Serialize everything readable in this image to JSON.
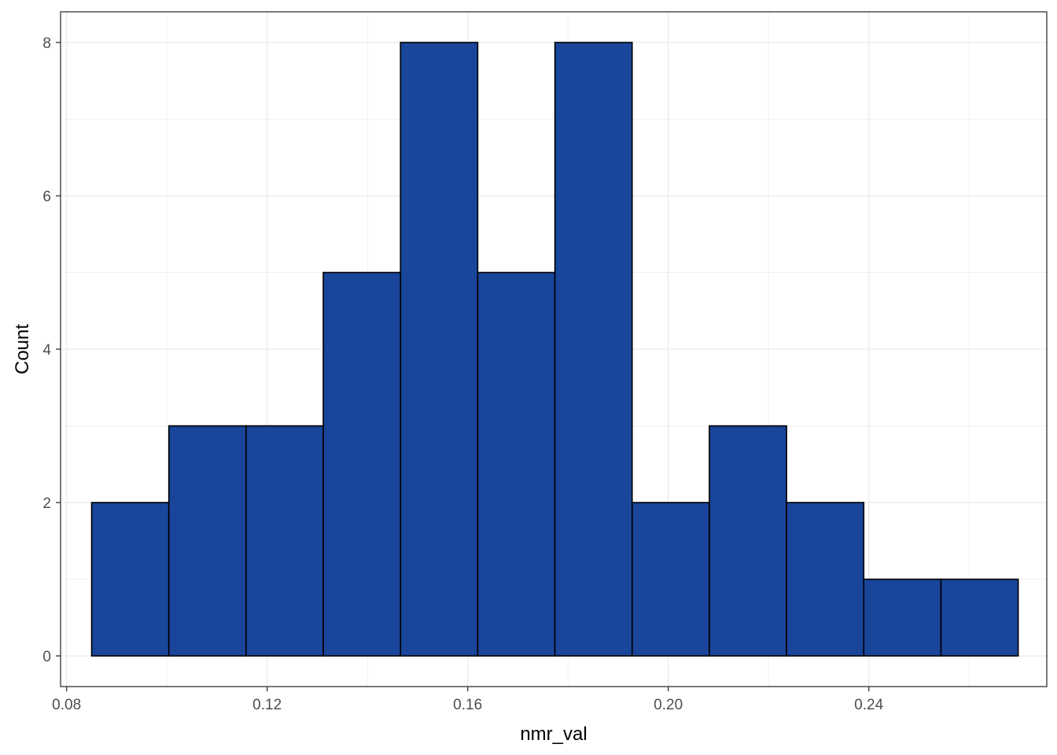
{
  "chart_data": {
    "type": "bar",
    "subtype": "histogram",
    "xlabel": "nmr_val",
    "ylabel": "Count",
    "xlim": [
      0.0788,
      0.2755
    ],
    "ylim": [
      -0.4,
      8.4
    ],
    "x_ticks": [
      0.08,
      0.12,
      0.16,
      0.2,
      0.24
    ],
    "x_tick_labels": [
      "0.08",
      "0.12",
      "0.16",
      "0.20",
      "0.24"
    ],
    "y_ticks": [
      0,
      2,
      4,
      6,
      8
    ],
    "y_tick_labels": [
      "0",
      "2",
      "4",
      "6",
      "8"
    ],
    "bins": [
      {
        "x_start": 0.085,
        "x_end": 0.1004,
        "count": 2
      },
      {
        "x_start": 0.1004,
        "x_end": 0.1158,
        "count": 3
      },
      {
        "x_start": 0.1158,
        "x_end": 0.1312,
        "count": 3
      },
      {
        "x_start": 0.1312,
        "x_end": 0.1466,
        "count": 5
      },
      {
        "x_start": 0.1466,
        "x_end": 0.162,
        "count": 8
      },
      {
        "x_start": 0.162,
        "x_end": 0.1774,
        "count": 5
      },
      {
        "x_start": 0.1774,
        "x_end": 0.1928,
        "count": 8
      },
      {
        "x_start": 0.1928,
        "x_end": 0.2082,
        "count": 2
      },
      {
        "x_start": 0.2082,
        "x_end": 0.2236,
        "count": 3
      },
      {
        "x_start": 0.2236,
        "x_end": 0.239,
        "count": 2
      },
      {
        "x_start": 0.239,
        "x_end": 0.2544,
        "count": 1
      },
      {
        "x_start": 0.2544,
        "x_end": 0.2698,
        "count": 1
      }
    ],
    "grid": true,
    "colors": {
      "bar_fill": "#19459a",
      "bar_outline": "#000000",
      "grid": "#ebebeb",
      "panel_border": "#333333"
    }
  }
}
